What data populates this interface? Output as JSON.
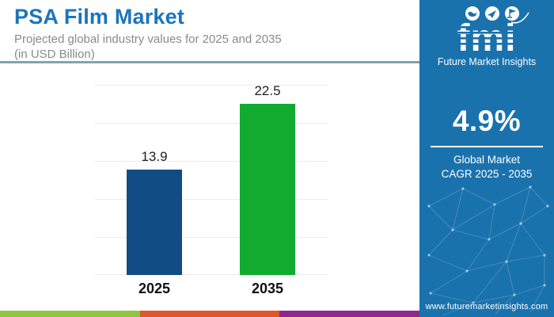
{
  "header": {
    "title": "PSA Film Market",
    "subtitle_line1": "Projected global industry values for 2025 and 2035",
    "subtitle_line2": "(in USD Billion)"
  },
  "chart_data": {
    "type": "bar",
    "title": "PSA Film Market",
    "subtitle": "Projected global industry values for 2025 and 2035 (in USD Billion)",
    "categories": [
      "2025",
      "2035"
    ],
    "values": [
      13.9,
      22.5
    ],
    "value_labels": [
      "13.9",
      "22.5"
    ],
    "bar_colors": [
      "#114c85",
      "#12ab2f"
    ],
    "unit": "USD Billion",
    "xlabel": "",
    "ylabel": "",
    "ylim": [
      0,
      25
    ],
    "gridline_step": 5,
    "grid": true,
    "legend": false
  },
  "sidebar": {
    "background": "#1a72ad",
    "logo_text": "fmi",
    "logo_tagline": "Future Market Insights",
    "cagr_value": "4.9%",
    "cagr_label_line1": "Global Market",
    "cagr_label_line2": "CAGR 2025 - 2035",
    "website": "www.futuremarketinsights.com"
  },
  "footer_strip_colors": [
    "#8dc63f",
    "#e0572a",
    "#8f278c"
  ],
  "colors": {
    "title": "#1b75bb",
    "subtitle": "#8a8a8a",
    "header_divider": "#7fa4b2",
    "gridline": "#ececec"
  }
}
